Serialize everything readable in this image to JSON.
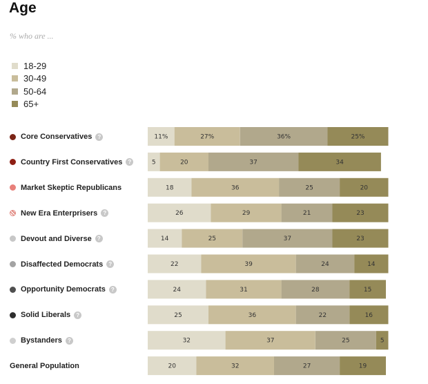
{
  "title": "Age",
  "subtitle": "% who are ...",
  "colors": {
    "age_18_29": "#e0dccb",
    "age_30_49": "#c9bd9b",
    "age_50_64": "#b1a88c",
    "age_65_plus": "#958a58",
    "help_bg": "#c8c8c8"
  },
  "chart_data": {
    "type": "bar",
    "orientation": "horizontal",
    "stacked": true,
    "title": "Age",
    "subtitle": "% who are ...",
    "legend": [
      "18-29",
      "30-49",
      "50-64",
      "65+"
    ],
    "legend_position": "top-left",
    "xlim": [
      0,
      100
    ],
    "categories": [
      {
        "name": "Core Conservatives",
        "dot": "#7b2416",
        "help": true
      },
      {
        "name": "Country First Conservatives",
        "dot": "#8e1f14",
        "help": true
      },
      {
        "name": "Market Skeptic Republicans",
        "dot": "#e8807a",
        "help": false
      },
      {
        "name": "New Era Enterprisers",
        "dot": "#e0857d",
        "help": true,
        "dot_pattern": "striped"
      },
      {
        "name": "Devout and Diverse",
        "dot": "#c7c7c7",
        "help": true
      },
      {
        "name": "Disaffected Democrats",
        "dot": "#a3a3a3",
        "help": true
      },
      {
        "name": "Opportunity Democrats",
        "dot": "#4f4f4f",
        "help": true
      },
      {
        "name": "Solid Liberals",
        "dot": "#2e2e2e",
        "help": true
      },
      {
        "name": "Bystanders",
        "dot": "#cfcfcf",
        "help": true
      },
      {
        "name": "General Population",
        "dot": null,
        "help": false
      }
    ],
    "series": [
      {
        "name": "18-29",
        "color": "#e0dccb",
        "values": [
          11,
          5,
          18,
          26,
          14,
          22,
          24,
          25,
          32,
          20
        ]
      },
      {
        "name": "30-49",
        "color": "#c9bd9b",
        "values": [
          27,
          20,
          36,
          29,
          25,
          39,
          31,
          36,
          37,
          32
        ]
      },
      {
        "name": "50-64",
        "color": "#b1a88c",
        "values": [
          36,
          37,
          25,
          21,
          37,
          24,
          28,
          22,
          25,
          27
        ]
      },
      {
        "name": "65+",
        "color": "#958a58",
        "values": [
          25,
          34,
          20,
          23,
          23,
          14,
          15,
          16,
          5,
          19
        ]
      }
    ],
    "label_suffix_first_row": "%"
  },
  "help_glyph": "?"
}
